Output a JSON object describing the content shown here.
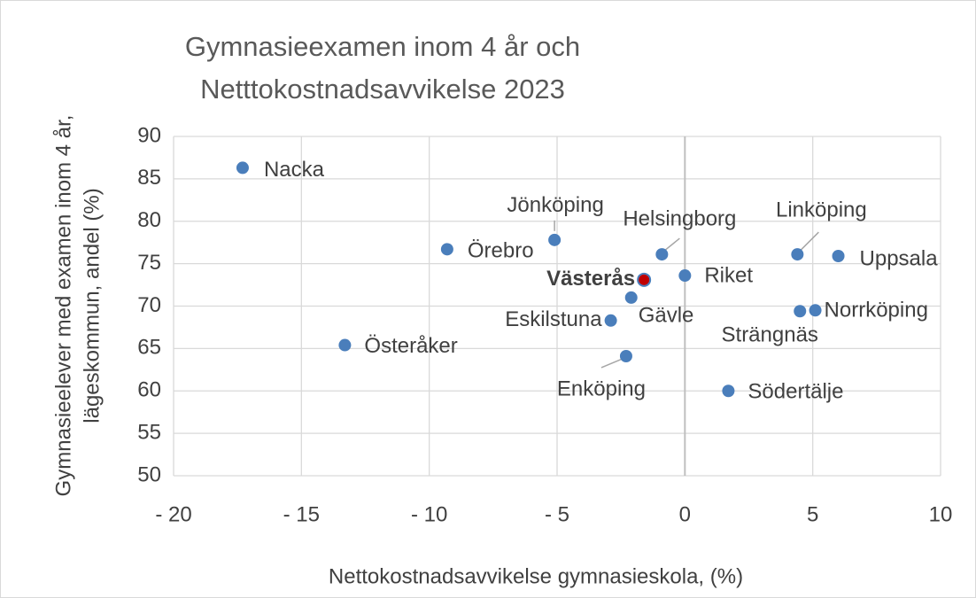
{
  "chart_data": {
    "type": "scatter",
    "title": [
      "Gymnasieexamen inom 4 år och",
      "Netttokostnadsavvikelse 2023"
    ],
    "x_label": "Nettokostnadsavvikelse gymnasieskola, (%)",
    "y_label": [
      "Gymnasieelever med examen inom 4 år,",
      "lägeskommun, andel (%)"
    ],
    "point_labels": [
      "Nacka",
      "Örebro",
      "Jönköping",
      "Helsingborg",
      "Västerås",
      "Riket",
      "Gävle",
      "Eskilstuna",
      "Österåker",
      "Enköping",
      "Södertälje",
      "Linköping",
      "Uppsala",
      "Strängnäs",
      "Norrköping"
    ],
    "x": [
      -17.3,
      -9.3,
      -5.1,
      -0.9,
      -1.6,
      0,
      -2.1,
      -2.9,
      -13.3,
      -2.3,
      1.7,
      4.4,
      6.0,
      4.5,
      5.1
    ],
    "values": [
      86.3,
      76.7,
      77.8,
      76.1,
      73.1,
      73.6,
      71.0,
      68.3,
      65.4,
      64.1,
      60.0,
      76.1,
      75.9,
      69.4,
      69.5
    ],
    "colors": [
      "#4a7ebb",
      "#4a7ebb",
      "#4a7ebb",
      "#4a7ebb",
      "#c00000",
      "#4a7ebb",
      "#4a7ebb",
      "#4a7ebb",
      "#4a7ebb",
      "#4a7ebb",
      "#4a7ebb",
      "#4a7ebb",
      "#4a7ebb",
      "#4a7ebb",
      "#4a7ebb"
    ],
    "xlim": [
      -20,
      10
    ],
    "xticks": [
      {
        "value": -20,
        "label": "- 20"
      },
      {
        "value": -15,
        "label": "- 15"
      },
      {
        "value": -10,
        "label": "- 10"
      },
      {
        "value": -5,
        "label": "- 5"
      },
      0,
      5,
      10
    ],
    "ylim": [
      50,
      90
    ],
    "yticks": [
      50,
      55,
      60,
      65,
      70,
      75,
      80,
      85,
      90
    ],
    "grid": true
  }
}
